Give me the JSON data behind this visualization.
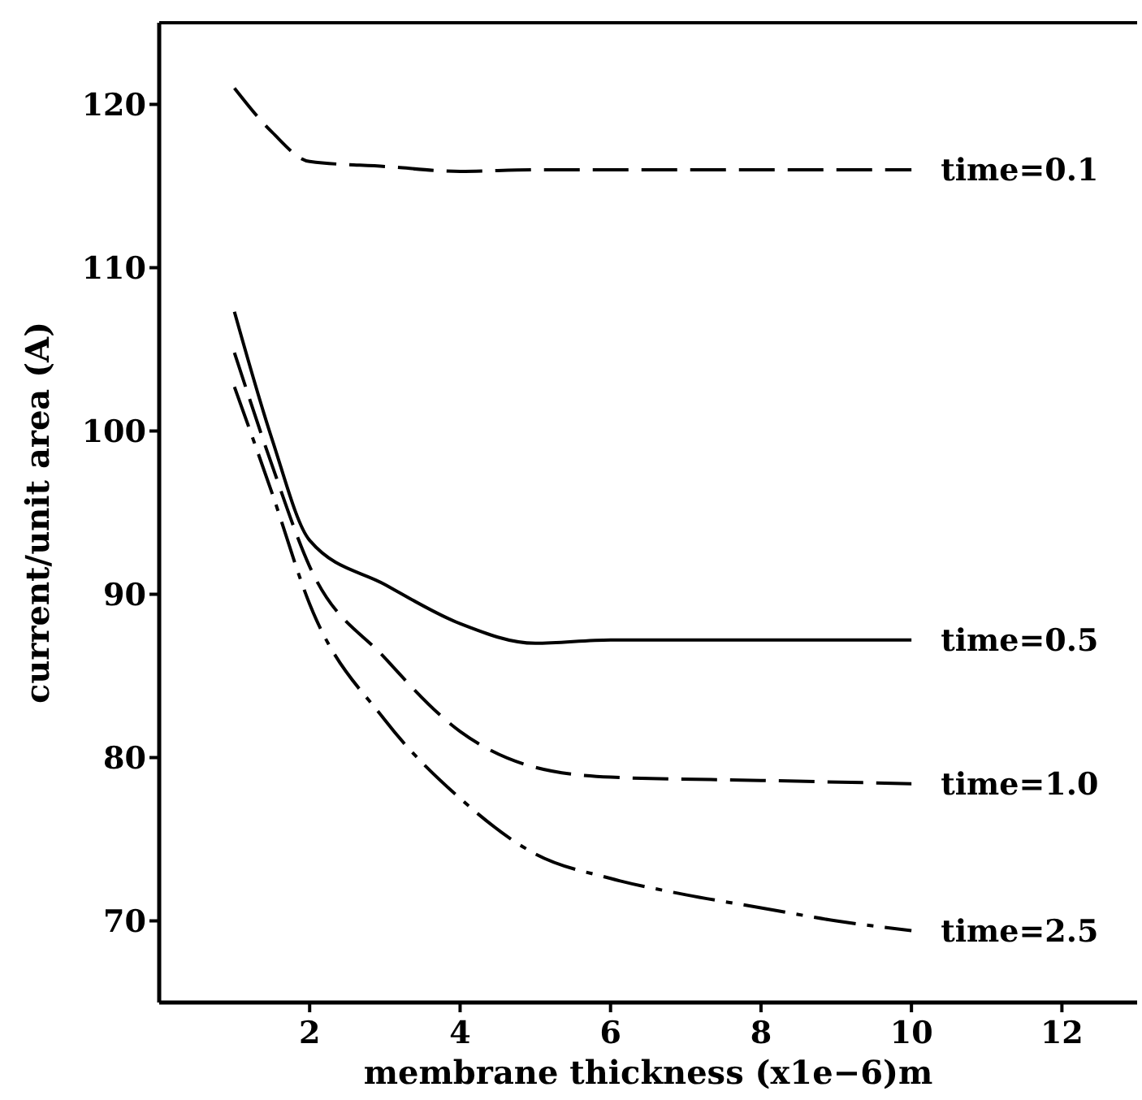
{
  "chart_data": {
    "type": "line",
    "xlabel": "membrane thickness (x1e−6)m",
    "ylabel": "current/unit area (A)",
    "xlim": [
      0,
      13
    ],
    "ylim": [
      65,
      125
    ],
    "xticks": [
      2,
      4,
      6,
      8,
      10,
      12
    ],
    "yticks": [
      70,
      80,
      90,
      100,
      110,
      120
    ],
    "grid": false,
    "marker": "none",
    "series": [
      {
        "name": "time=0.1",
        "color": "#000000",
        "line_style": "dashed",
        "x": [
          1,
          1.5,
          2,
          3,
          4,
          5,
          6,
          8,
          10
        ],
        "values": [
          121,
          118.3,
          116.5,
          116.2,
          115.9,
          116,
          116,
          116,
          116
        ]
      },
      {
        "name": "time=0.5",
        "color": "#000000",
        "line_style": "solid",
        "x": [
          1,
          1.5,
          2,
          3,
          4,
          5,
          6,
          8,
          10
        ],
        "values": [
          107.3,
          99.5,
          93.3,
          90.6,
          88.2,
          87,
          87.2,
          87.2,
          87.2
        ]
      },
      {
        "name": "time=1.0",
        "color": "#000000",
        "line_style": "dashed",
        "x": [
          1,
          1.5,
          2,
          3,
          4,
          5,
          6,
          8,
          10
        ],
        "values": [
          104.8,
          97.9,
          91.7,
          86.1,
          81.6,
          79.4,
          78.8,
          78.6,
          78.4
        ]
      },
      {
        "name": "time=2.5",
        "color": "#000000",
        "line_style": "dashed",
        "x": [
          1,
          1.5,
          2,
          3,
          4,
          5,
          6,
          7,
          8,
          9,
          10
        ],
        "values": [
          102.7,
          96.2,
          89.4,
          82.3,
          77.5,
          74.1,
          72.6,
          71.6,
          70.8,
          70,
          69.4
        ]
      }
    ]
  }
}
